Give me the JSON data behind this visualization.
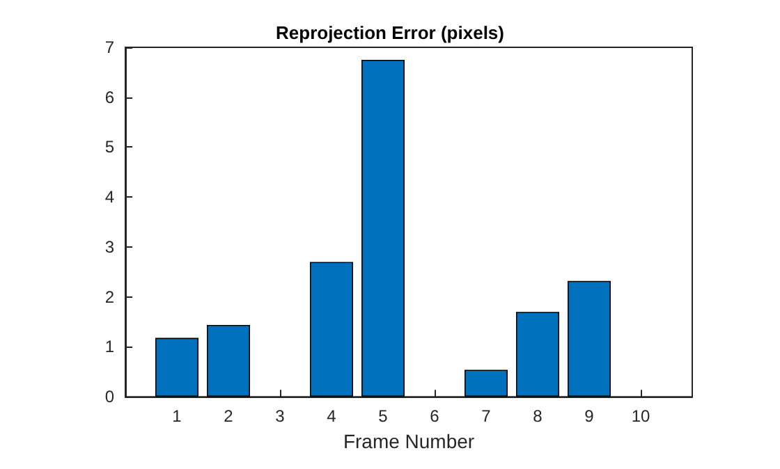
{
  "chart_data": {
    "type": "bar",
    "title": "Reprojection Error (pixels)",
    "xlabel": "Frame Number",
    "x": [
      1,
      2,
      3,
      4,
      5,
      6,
      7,
      8,
      9,
      10
    ],
    "values": [
      1.18,
      1.44,
      0,
      2.7,
      6.75,
      0,
      0.54,
      1.7,
      2.32,
      0
    ],
    "color": "#0072bd",
    "xlim": [
      0,
      11
    ],
    "xticks": [
      1,
      2,
      3,
      4,
      5,
      6,
      7,
      8,
      9,
      10
    ],
    "ylim": [
      0,
      7
    ],
    "yticks": [
      0,
      1,
      2,
      3,
      4,
      5,
      6,
      7
    ],
    "grid": false
  }
}
